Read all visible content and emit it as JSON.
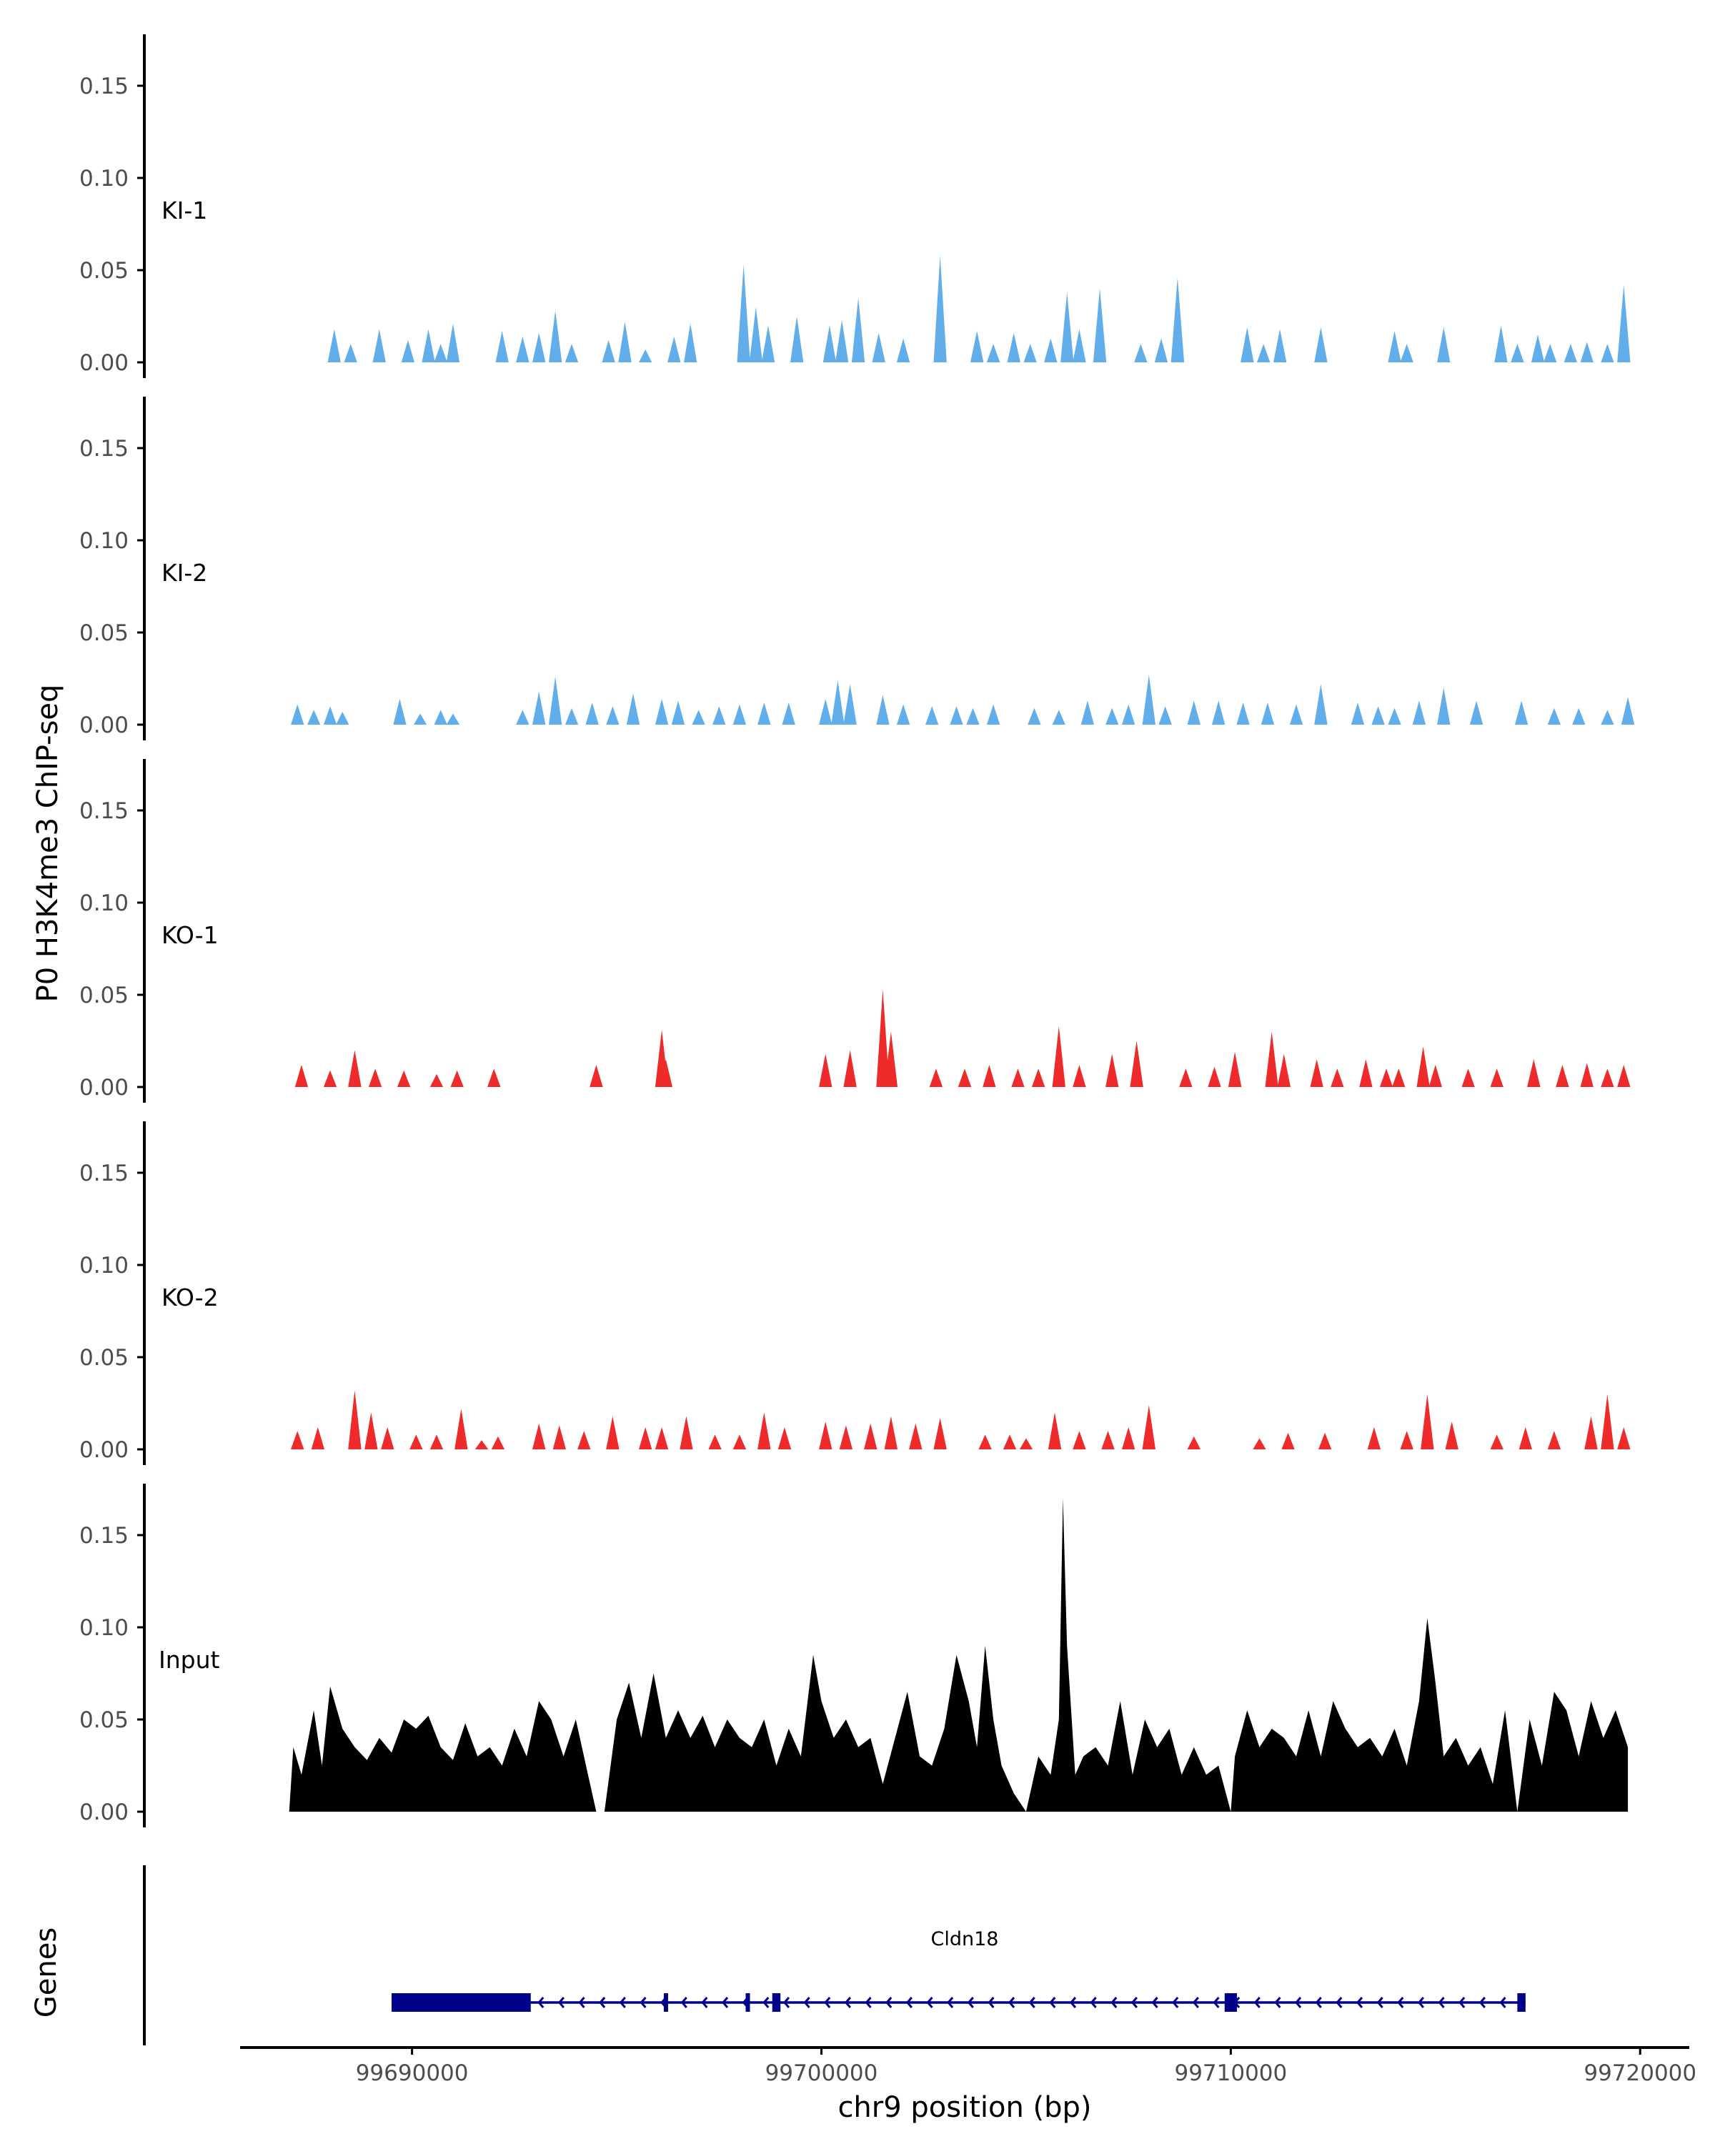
{
  "chart_data": {
    "type": "area",
    "ylabel": "P0 H3K4me3 ChIP-seq",
    "xlabel": "chr9 position (bp)",
    "xlim": [
      99685800,
      99721200
    ],
    "ylim": [
      0,
      0.18
    ],
    "yticks": [
      0.0,
      0.05,
      0.1,
      0.15
    ],
    "ytick_labels": [
      "0.00",
      "0.05",
      "0.10",
      "0.15"
    ],
    "xticks": [
      99690000,
      99700000,
      99710000,
      99720000
    ],
    "xtick_labels": [
      "99690000",
      "99700000",
      "99710000",
      "99720000"
    ],
    "colors": {
      "KI": "#62aeea",
      "KO": "#ee2a2a",
      "Input": "#000000",
      "gene": "#00008b",
      "axis": "#000000",
      "tick_text": "#4d4d4d"
    },
    "tracks": [
      {
        "name": "KI-1",
        "color": "#62aeea",
        "peaks": [
          [
            99688100,
            0.018
          ],
          [
            99688500,
            0.01
          ],
          [
            99689200,
            0.018
          ],
          [
            99689900,
            0.012
          ],
          [
            99690400,
            0.018
          ],
          [
            99690700,
            0.01
          ],
          [
            99691000,
            0.021
          ],
          [
            99692200,
            0.017
          ],
          [
            99692700,
            0.014
          ],
          [
            99693100,
            0.016
          ],
          [
            99693500,
            0.028
          ],
          [
            99693900,
            0.01
          ],
          [
            99694800,
            0.012
          ],
          [
            99695200,
            0.022
          ],
          [
            99695700,
            0.007
          ],
          [
            99696400,
            0.014
          ],
          [
            99696800,
            0.021
          ],
          [
            99698100,
            0.053
          ],
          [
            99698400,
            0.03
          ],
          [
            99698700,
            0.02
          ],
          [
            99699400,
            0.025
          ],
          [
            99700200,
            0.02
          ],
          [
            99700500,
            0.023
          ],
          [
            99700900,
            0.035
          ],
          [
            99701400,
            0.016
          ],
          [
            99702000,
            0.013
          ],
          [
            99702900,
            0.058
          ],
          [
            99703800,
            0.017
          ],
          [
            99704200,
            0.01
          ],
          [
            99704700,
            0.016
          ],
          [
            99705100,
            0.01
          ],
          [
            99705600,
            0.013
          ],
          [
            99706000,
            0.038
          ],
          [
            99706300,
            0.018
          ],
          [
            99706800,
            0.04
          ],
          [
            99707800,
            0.01
          ],
          [
            99708300,
            0.013
          ],
          [
            99708700,
            0.046
          ],
          [
            99710400,
            0.019
          ],
          [
            99710800,
            0.01
          ],
          [
            99711200,
            0.018
          ],
          [
            99712200,
            0.019
          ],
          [
            99714000,
            0.017
          ],
          [
            99714300,
            0.01
          ],
          [
            99715200,
            0.019
          ],
          [
            99716600,
            0.02
          ],
          [
            99717000,
            0.01
          ],
          [
            99717500,
            0.015
          ],
          [
            99717800,
            0.01
          ],
          [
            99718300,
            0.01
          ],
          [
            99718700,
            0.011
          ],
          [
            99719200,
            0.01
          ],
          [
            99719600,
            0.042
          ]
        ]
      },
      {
        "name": "KI-2",
        "color": "#62aeea",
        "peaks": [
          [
            99687200,
            0.011
          ],
          [
            99687600,
            0.008
          ],
          [
            99688000,
            0.01
          ],
          [
            99688300,
            0.007
          ],
          [
            99689700,
            0.014
          ],
          [
            99690200,
            0.006
          ],
          [
            99690700,
            0.008
          ],
          [
            99691000,
            0.006
          ],
          [
            99692700,
            0.008
          ],
          [
            99693100,
            0.018
          ],
          [
            99693500,
            0.026
          ],
          [
            99693900,
            0.009
          ],
          [
            99694400,
            0.012
          ],
          [
            99694900,
            0.01
          ],
          [
            99695400,
            0.017
          ],
          [
            99696100,
            0.014
          ],
          [
            99696500,
            0.013
          ],
          [
            99697000,
            0.008
          ],
          [
            99697500,
            0.01
          ],
          [
            99698000,
            0.011
          ],
          [
            99698600,
            0.012
          ],
          [
            99699200,
            0.012
          ],
          [
            99700100,
            0.014
          ],
          [
            99700400,
            0.024
          ],
          [
            99700700,
            0.022
          ],
          [
            99701500,
            0.016
          ],
          [
            99702000,
            0.011
          ],
          [
            99702700,
            0.01
          ],
          [
            99703300,
            0.01
          ],
          [
            99703700,
            0.009
          ],
          [
            99704200,
            0.011
          ],
          [
            99705200,
            0.009
          ],
          [
            99705800,
            0.008
          ],
          [
            99706500,
            0.013
          ],
          [
            99707100,
            0.009
          ],
          [
            99707500,
            0.011
          ],
          [
            99708000,
            0.027
          ],
          [
            99708400,
            0.01
          ],
          [
            99709100,
            0.013
          ],
          [
            99709700,
            0.013
          ],
          [
            99710300,
            0.012
          ],
          [
            99710900,
            0.012
          ],
          [
            99711600,
            0.011
          ],
          [
            99712200,
            0.022
          ],
          [
            99713100,
            0.012
          ],
          [
            99713600,
            0.01
          ],
          [
            99714000,
            0.009
          ],
          [
            99714600,
            0.013
          ],
          [
            99715200,
            0.02
          ],
          [
            99716000,
            0.013
          ],
          [
            99717100,
            0.013
          ],
          [
            99717900,
            0.009
          ],
          [
            99718500,
            0.009
          ],
          [
            99719200,
            0.008
          ],
          [
            99719700,
            0.015
          ]
        ]
      },
      {
        "name": "KO-1",
        "color": "#ee2a2a",
        "peaks": [
          [
            99687300,
            0.012
          ],
          [
            99688000,
            0.009
          ],
          [
            99688600,
            0.02
          ],
          [
            99689100,
            0.01
          ],
          [
            99689800,
            0.009
          ],
          [
            99690600,
            0.007
          ],
          [
            99691100,
            0.009
          ],
          [
            99692000,
            0.01
          ],
          [
            99694500,
            0.012
          ],
          [
            99696100,
            0.031
          ],
          [
            99696200,
            0.015
          ],
          [
            99700100,
            0.018
          ],
          [
            99700700,
            0.02
          ],
          [
            99701500,
            0.053
          ],
          [
            99701700,
            0.03
          ],
          [
            99702800,
            0.01
          ],
          [
            99703500,
            0.01
          ],
          [
            99704100,
            0.012
          ],
          [
            99704800,
            0.01
          ],
          [
            99705300,
            0.01
          ],
          [
            99705800,
            0.033
          ],
          [
            99706300,
            0.012
          ],
          [
            99707100,
            0.018
          ],
          [
            99707700,
            0.025
          ],
          [
            99708900,
            0.01
          ],
          [
            99709600,
            0.011
          ],
          [
            99710100,
            0.019
          ],
          [
            99711000,
            0.03
          ],
          [
            99711300,
            0.018
          ],
          [
            99712100,
            0.015
          ],
          [
            99712600,
            0.01
          ],
          [
            99713300,
            0.015
          ],
          [
            99713800,
            0.01
          ],
          [
            99714100,
            0.01
          ],
          [
            99714700,
            0.022
          ],
          [
            99715000,
            0.012
          ],
          [
            99715800,
            0.01
          ],
          [
            99716500,
            0.01
          ],
          [
            99717400,
            0.015
          ],
          [
            99718100,
            0.012
          ],
          [
            99718700,
            0.013
          ],
          [
            99719200,
            0.01
          ],
          [
            99719600,
            0.012
          ]
        ]
      },
      {
        "name": "KO-2",
        "color": "#ee2a2a",
        "peaks": [
          [
            99687200,
            0.01
          ],
          [
            99687700,
            0.012
          ],
          [
            99688600,
            0.032
          ],
          [
            99689000,
            0.02
          ],
          [
            99689400,
            0.012
          ],
          [
            99690100,
            0.008
          ],
          [
            99690600,
            0.008
          ],
          [
            99691200,
            0.022
          ],
          [
            99691700,
            0.005
          ],
          [
            99692100,
            0.007
          ],
          [
            99693100,
            0.014
          ],
          [
            99693600,
            0.013
          ],
          [
            99694200,
            0.01
          ],
          [
            99694900,
            0.018
          ],
          [
            99695700,
            0.012
          ],
          [
            99696100,
            0.012
          ],
          [
            99696700,
            0.018
          ],
          [
            99697400,
            0.008
          ],
          [
            99698000,
            0.008
          ],
          [
            99698600,
            0.02
          ],
          [
            99699100,
            0.012
          ],
          [
            99700100,
            0.015
          ],
          [
            99700600,
            0.013
          ],
          [
            99701200,
            0.014
          ],
          [
            99701700,
            0.018
          ],
          [
            99702300,
            0.014
          ],
          [
            99702900,
            0.017
          ],
          [
            99704000,
            0.008
          ],
          [
            99704600,
            0.008
          ],
          [
            99705000,
            0.006
          ],
          [
            99705700,
            0.02
          ],
          [
            99706300,
            0.01
          ],
          [
            99707000,
            0.01
          ],
          [
            99707500,
            0.012
          ],
          [
            99708000,
            0.024
          ],
          [
            99709100,
            0.007
          ],
          [
            99710700,
            0.006
          ],
          [
            99711400,
            0.009
          ],
          [
            99712300,
            0.009
          ],
          [
            99713500,
            0.012
          ],
          [
            99714300,
            0.01
          ],
          [
            99714800,
            0.03
          ],
          [
            99715400,
            0.015
          ],
          [
            99716500,
            0.008
          ],
          [
            99717200,
            0.012
          ],
          [
            99717900,
            0.01
          ],
          [
            99718800,
            0.018
          ],
          [
            99719200,
            0.03
          ],
          [
            99719600,
            0.012
          ]
        ]
      },
      {
        "name": "Input",
        "color": "#000000",
        "x": [
          99687000,
          99687100,
          99687300,
          99687600,
          99687800,
          99688000,
          99688300,
          99688600,
          99688900,
          99689200,
          99689500,
          99689800,
          99690100,
          99690400,
          99690700,
          99691000,
          99691300,
          99691600,
          99691900,
          99692200,
          99692500,
          99692800,
          99693100,
          99693400,
          99693700,
          99694000,
          99694300,
          99694500,
          99694700,
          99695000,
          99695300,
          99695600,
          99695900,
          99696200,
          99696500,
          99696800,
          99697100,
          99697400,
          99697700,
          99698000,
          99698300,
          99698600,
          99698900,
          99699200,
          99699500,
          99699800,
          99700000,
          99700300,
          99700600,
          99700900,
          99701200,
          99701500,
          99701800,
          99702100,
          99702400,
          99702700,
          99703000,
          99703300,
          99703600,
          99703800,
          99704000,
          99704200,
          99704400,
          99704700,
          99705000,
          99705300,
          99705600,
          99705800,
          99705900,
          99706000,
          99706200,
          99706400,
          99706700,
          99707000,
          99707300,
          99707600,
          99707900,
          99708200,
          99708500,
          99708800,
          99709100,
          99709400,
          99709700,
          99710000,
          99710100,
          99710400,
          99710700,
          99711000,
          99711300,
          99711600,
          99711900,
          99712200,
          99712500,
          99712800,
          99713100,
          99713400,
          99713700,
          99714000,
          99714300,
          99714600,
          99714800,
          99715000,
          99715200,
          99715500,
          99715800,
          99716100,
          99716400,
          99716700,
          99717000,
          99717300,
          99717600,
          99717900,
          99718200,
          99718500,
          99718800,
          99719100,
          99719400,
          99719700
        ],
        "y": [
          0.0,
          0.035,
          0.02,
          0.055,
          0.025,
          0.068,
          0.045,
          0.035,
          0.028,
          0.04,
          0.032,
          0.05,
          0.045,
          0.052,
          0.035,
          0.028,
          0.048,
          0.03,
          0.035,
          0.025,
          0.045,
          0.03,
          0.06,
          0.05,
          0.03,
          0.05,
          0.02,
          0.0,
          0.0,
          0.05,
          0.07,
          0.04,
          0.075,
          0.04,
          0.055,
          0.04,
          0.052,
          0.035,
          0.05,
          0.04,
          0.035,
          0.05,
          0.025,
          0.045,
          0.03,
          0.085,
          0.06,
          0.04,
          0.05,
          0.035,
          0.04,
          0.015,
          0.04,
          0.065,
          0.03,
          0.025,
          0.045,
          0.085,
          0.06,
          0.035,
          0.09,
          0.05,
          0.025,
          0.01,
          0.0,
          0.03,
          0.02,
          0.05,
          0.17,
          0.09,
          0.02,
          0.03,
          0.035,
          0.025,
          0.06,
          0.02,
          0.05,
          0.035,
          0.045,
          0.02,
          0.035,
          0.02,
          0.025,
          0.0,
          0.03,
          0.055,
          0.035,
          0.045,
          0.04,
          0.03,
          0.055,
          0.03,
          0.06,
          0.045,
          0.035,
          0.04,
          0.03,
          0.045,
          0.025,
          0.06,
          0.105,
          0.07,
          0.03,
          0.04,
          0.025,
          0.035,
          0.015,
          0.055,
          0.0,
          0.05,
          0.025,
          0.065,
          0.055,
          0.03,
          0.06,
          0.04,
          0.055,
          0.035
        ]
      }
    ],
    "gene_track": {
      "label": "Genes",
      "gene": "Cldn18",
      "start": 99689500,
      "end": 99717200,
      "strand": "-",
      "exons": [
        [
          99689500,
          99692900
        ],
        [
          99696150,
          99696250
        ],
        [
          99698150,
          99698250
        ],
        [
          99698800,
          99699000
        ],
        [
          99709850,
          99710150
        ],
        [
          99717000,
          99717200
        ]
      ]
    }
  }
}
